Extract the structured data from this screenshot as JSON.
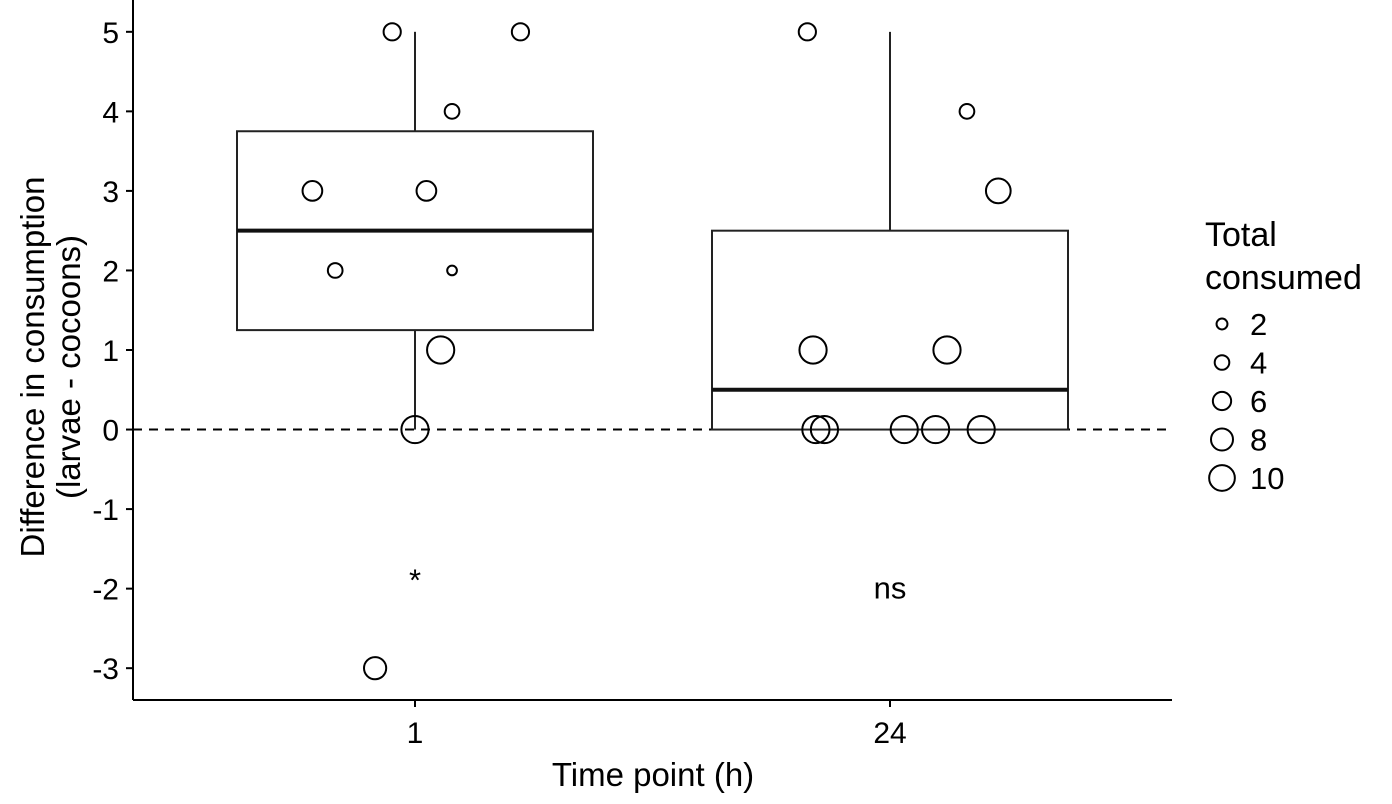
{
  "chart_data": {
    "type": "box",
    "xlabel": "Time point (h)",
    "ylabel_lines": [
      "Difference in consumption",
      "(larvae - cocoons)"
    ],
    "categories": [
      "1",
      "24"
    ],
    "ylim": [
      -3.4,
      5.4
    ],
    "yticks": [
      -3,
      -2,
      -1,
      0,
      1,
      2,
      3,
      4,
      5
    ],
    "grid": false,
    "reference_line": {
      "y": 0,
      "style": "dashed"
    },
    "boxes": [
      {
        "category": "1",
        "whisker_low": 0,
        "q1": 1.25,
        "median": 2.5,
        "q3": 3.75,
        "whisker_high": 5
      },
      {
        "category": "24",
        "whisker_low": 0,
        "q1": 0,
        "median": 0.5,
        "q3": 2.5,
        "whisker_high": 5
      }
    ],
    "points": [
      {
        "category": "1",
        "jitter": -0.08,
        "y": 5,
        "total": 4
      },
      {
        "category": "1",
        "jitter": 0.37,
        "y": 5,
        "total": 4
      },
      {
        "category": "1",
        "jitter": 0.13,
        "y": 4,
        "total": 3
      },
      {
        "category": "1",
        "jitter": -0.36,
        "y": 3,
        "total": 5
      },
      {
        "category": "1",
        "jitter": 0.04,
        "y": 3,
        "total": 5
      },
      {
        "category": "1",
        "jitter": -0.28,
        "y": 2,
        "total": 3
      },
      {
        "category": "1",
        "jitter": 0.13,
        "y": 2,
        "total": 1
      },
      {
        "category": "1",
        "jitter": 0.09,
        "y": 1,
        "total": 8
      },
      {
        "category": "1",
        "jitter": 0.0,
        "y": 0,
        "total": 8
      },
      {
        "category": "1",
        "jitter": -0.14,
        "y": -3,
        "total": 6
      },
      {
        "category": "24",
        "jitter": -0.29,
        "y": 5,
        "total": 4
      },
      {
        "category": "24",
        "jitter": 0.27,
        "y": 4,
        "total": 3
      },
      {
        "category": "24",
        "jitter": 0.38,
        "y": 3,
        "total": 7
      },
      {
        "category": "24",
        "jitter": -0.27,
        "y": 1,
        "total": 8
      },
      {
        "category": "24",
        "jitter": 0.2,
        "y": 1,
        "total": 8
      },
      {
        "category": "24",
        "jitter": -0.26,
        "y": 0,
        "total": 8
      },
      {
        "category": "24",
        "jitter": -0.23,
        "y": 0,
        "total": 8
      },
      {
        "category": "24",
        "jitter": 0.05,
        "y": 0,
        "total": 8
      },
      {
        "category": "24",
        "jitter": 0.16,
        "y": 0,
        "total": 8
      },
      {
        "category": "24",
        "jitter": 0.32,
        "y": 0,
        "total": 8
      }
    ],
    "size_legend": {
      "title_lines": [
        "Total",
        "consumed"
      ],
      "values": [
        2,
        4,
        6,
        8,
        10
      ]
    },
    "annotations": [
      {
        "category": "1",
        "y": -1.9,
        "text": "*"
      },
      {
        "category": "24",
        "y": -2.0,
        "text": "ns"
      }
    ]
  }
}
